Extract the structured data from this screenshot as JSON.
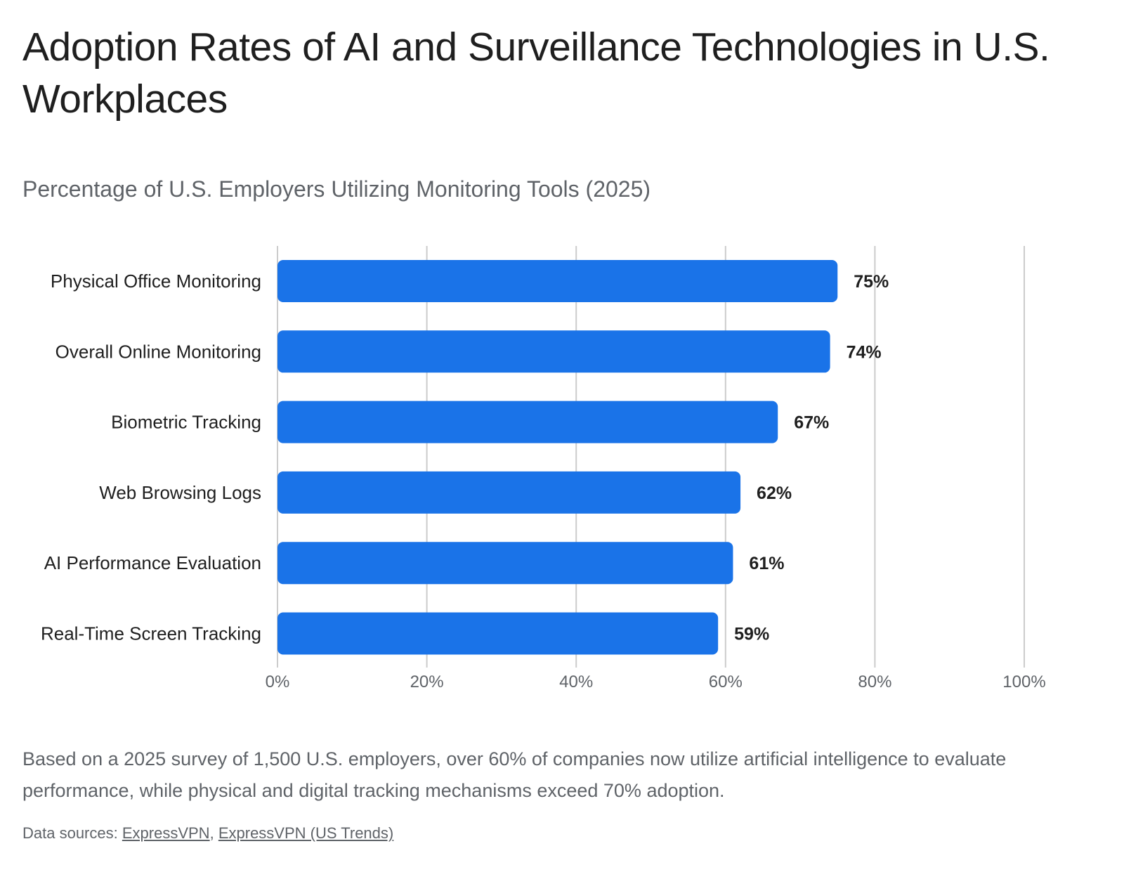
{
  "title": "Adoption Rates of AI and Surveillance Technologies in U.S. Workplaces",
  "subtitle": "Percentage of U.S. Employers Utilizing Monitoring Tools (2025)",
  "caption": "Based on a 2025 survey of 1,500 U.S. employers, over 60% of companies now utilize artificial intelligence to evaluate performance, while physical and digital tracking mechanisms exceed 70% adoption.",
  "sources": {
    "label": "Data sources:",
    "separator": ",",
    "links": [
      "ExpressVPN",
      "ExpressVPN (US Trends)"
    ]
  },
  "colors": {
    "bar": "#1a73e8",
    "grid": "#cccccc",
    "axis_text": "#5f6368",
    "label_text": "#1f1f1f"
  },
  "chart_data": {
    "type": "bar",
    "orientation": "horizontal",
    "categories": [
      "Physical Office Monitoring",
      "Overall Online Monitoring",
      "Biometric Tracking",
      "Web Browsing Logs",
      "AI Performance Evaluation",
      "Real-Time Screen Tracking"
    ],
    "values": [
      75,
      74,
      67,
      62,
      61,
      59
    ],
    "data_labels": [
      "75%",
      "74%",
      "67%",
      "62%",
      "61%",
      "59%"
    ],
    "xlim": [
      0,
      100
    ],
    "xticks": [
      0,
      20,
      40,
      60,
      80,
      100
    ],
    "xtick_labels": [
      "0%",
      "20%",
      "40%",
      "60%",
      "80%",
      "100%"
    ],
    "grid": true,
    "legend": false
  }
}
